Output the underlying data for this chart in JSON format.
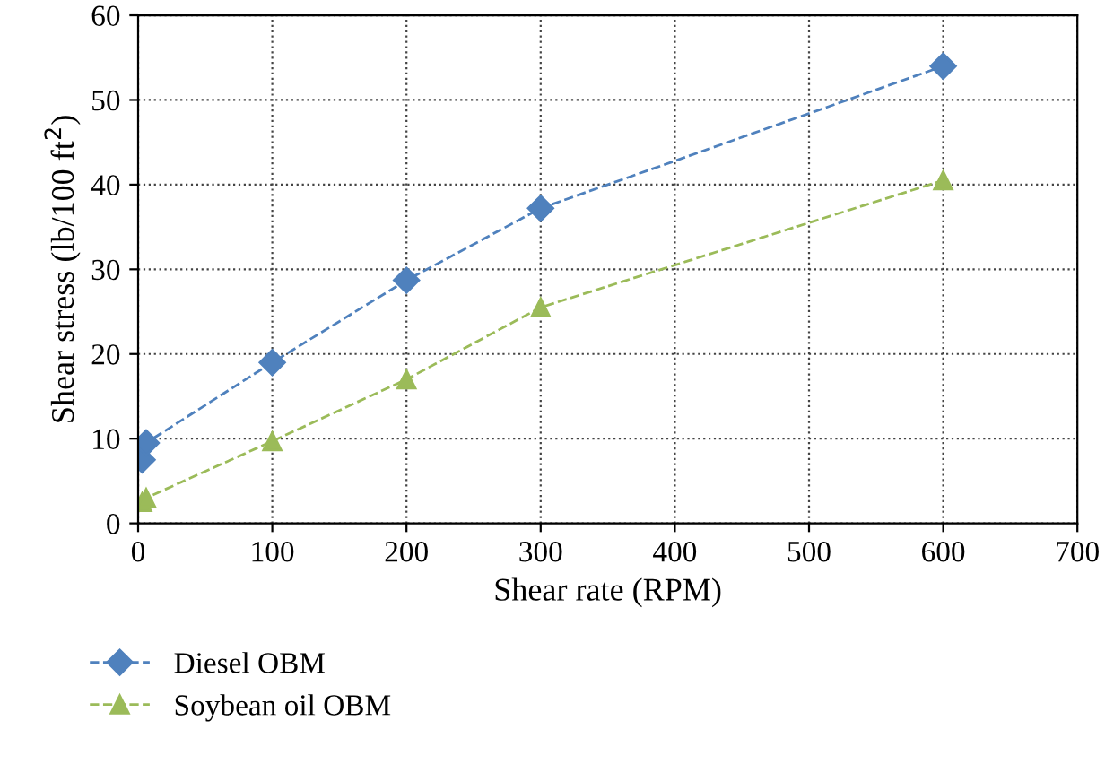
{
  "chart_data": {
    "type": "line",
    "xlabel": "Shear rate (RPM)",
    "ylabel": "Shear stress (lb/100 ft$^{2}$)",
    "x": [
      3,
      6,
      100,
      200,
      300,
      600
    ],
    "series": [
      {
        "name": "Diesel OBM",
        "color": "#4f81bd",
        "values": [
          7.5,
          9.5,
          19,
          28.7,
          37.2,
          54
        ],
        "marker": "diamond"
      },
      {
        "name": "Soybean oil OBM",
        "color": "#9bbb59",
        "values": [
          2.5,
          3,
          9.7,
          17,
          25.5,
          40.5
        ],
        "marker": "triangle"
      }
    ],
    "xlim": [
      0,
      700
    ],
    "xticks": [
      0,
      100,
      200,
      300,
      400,
      500,
      600,
      700
    ],
    "ylim": [
      0,
      60
    ],
    "yticks": [
      0,
      10,
      20,
      30,
      40,
      50,
      60
    ],
    "grid": true,
    "legend": "bottom",
    "line_style": "dashed"
  }
}
